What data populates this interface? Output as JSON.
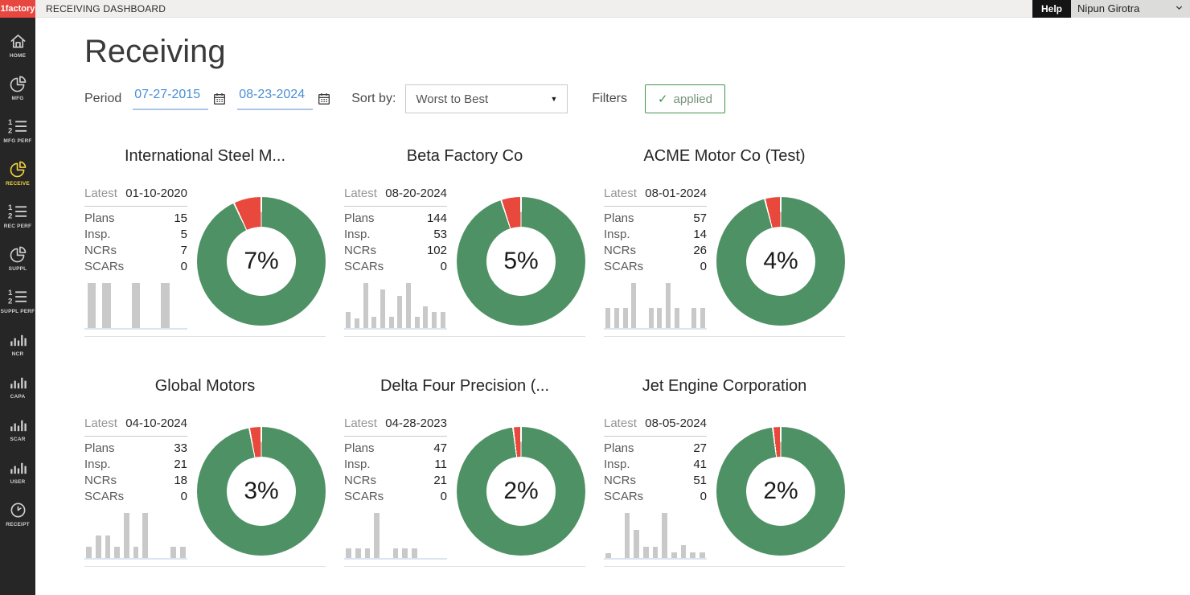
{
  "topbar": {
    "logo": "1factory",
    "title": "RECEIVING DASHBOARD",
    "help_label": "Help",
    "user_name": "Nipun Girotra"
  },
  "sidebar": {
    "items": [
      {
        "label": "HOME",
        "icon": "home-icon",
        "active": false
      },
      {
        "label": "MFG",
        "icon": "pie-icon",
        "active": false
      },
      {
        "label": "MFG PERF",
        "icon": "numbered-list-icon",
        "active": false
      },
      {
        "label": "RECEIVE",
        "icon": "pie-icon",
        "active": true
      },
      {
        "label": "REC PERF",
        "icon": "numbered-list-icon",
        "active": false
      },
      {
        "label": "SUPPL",
        "icon": "pie-icon",
        "active": false
      },
      {
        "label": "SUPPL PERF",
        "icon": "numbered-list-icon",
        "active": false
      },
      {
        "label": "NCR",
        "icon": "bar-chart-icon",
        "active": false
      },
      {
        "label": "CAPA",
        "icon": "bar-chart-icon",
        "active": false
      },
      {
        "label": "SCAR",
        "icon": "bar-chart-icon",
        "active": false
      },
      {
        "label": "USER",
        "icon": "bar-chart-icon",
        "active": false
      },
      {
        "label": "RECEIPT",
        "icon": "clock-icon",
        "active": false
      }
    ]
  },
  "page": {
    "heading": "Receiving",
    "period_label": "Period",
    "date_from": "07-27-2015",
    "date_to": "08-23-2024",
    "sort_label": "Sort by:",
    "sort_value": "Worst to Best",
    "filters_label": "Filters",
    "applied_label": "applied"
  },
  "stat_labels": {
    "latest": "Latest",
    "plans": "Plans",
    "insp": "Insp.",
    "ncrs": "NCRs",
    "scars": "SCARs"
  },
  "colors": {
    "green": "#4e9164",
    "red": "#e8493c",
    "bar_gray": "#c9c9c9",
    "brand_red": "#e8473f",
    "active_yellow": "#f0d23e",
    "link_blue": "#4a8fd4"
  },
  "cards": [
    {
      "title": "International Steel M...",
      "latest": "01-10-2020",
      "plans": "15",
      "insp": "5",
      "ncrs": "7",
      "scars": "0",
      "pct": 7,
      "pct_label": "7%",
      "bars": [
        100,
        100,
        0,
        100,
        0,
        100,
        0
      ]
    },
    {
      "title": "Beta Factory Co",
      "latest": "08-20-2024",
      "plans": "144",
      "insp": "53",
      "ncrs": "102",
      "scars": "0",
      "pct": 5,
      "pct_label": "5%",
      "bars": [
        35,
        22,
        100,
        25,
        85,
        25,
        72,
        100,
        25,
        48,
        35,
        35
      ]
    },
    {
      "title": "ACME Motor Co (Test)",
      "latest": "08-01-2024",
      "plans": "57",
      "insp": "14",
      "ncrs": "26",
      "scars": "0",
      "pct": 4,
      "pct_label": "4%",
      "bars": [
        45,
        45,
        45,
        100,
        0,
        45,
        45,
        100,
        45,
        0,
        45,
        45
      ]
    },
    {
      "title": "Global Motors",
      "latest": "04-10-2024",
      "plans": "33",
      "insp": "21",
      "ncrs": "18",
      "scars": "0",
      "pct": 3,
      "pct_label": "3%",
      "bars": [
        25,
        50,
        50,
        25,
        100,
        25,
        100,
        0,
        0,
        25,
        25
      ]
    },
    {
      "title": "Delta Four Precision (...",
      "latest": "04-28-2023",
      "plans": "47",
      "insp": "11",
      "ncrs": "21",
      "scars": "0",
      "pct": 2,
      "pct_label": "2%",
      "bars": [
        22,
        22,
        22,
        100,
        0,
        22,
        22,
        22,
        0,
        0,
        0
      ]
    },
    {
      "title": "Jet Engine Corporation",
      "latest": "08-05-2024",
      "plans": "27",
      "insp": "41",
      "ncrs": "51",
      "scars": "0",
      "pct": 2,
      "pct_label": "2%",
      "bars": [
        10,
        0,
        100,
        62,
        25,
        25,
        100,
        12,
        28,
        12,
        12
      ]
    }
  ]
}
